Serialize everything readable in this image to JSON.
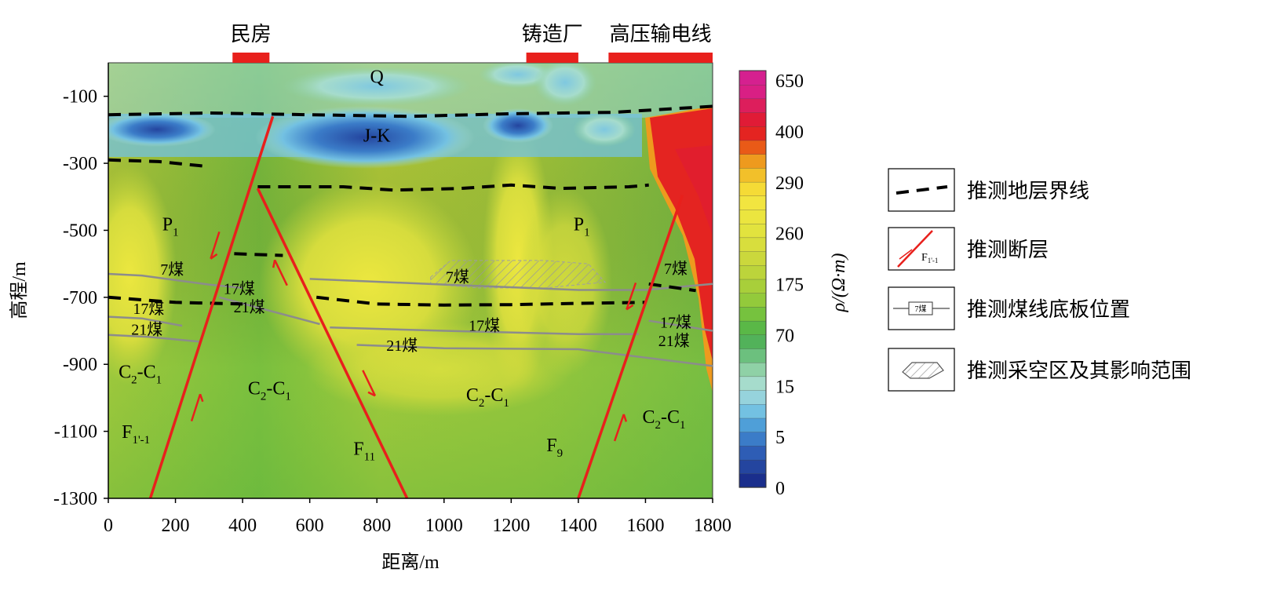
{
  "chart_data": {
    "type": "heatmap",
    "xlabel": "距离/m",
    "ylabel": "高程/m",
    "xlim": [
      0,
      1800
    ],
    "ylim": [
      -1300,
      0
    ],
    "x_ticks": [
      "0",
      "200",
      "400",
      "600",
      "800",
      "1000",
      "1200",
      "1400",
      "1600",
      "1800"
    ],
    "y_ticks": [
      {
        "v": -100,
        "label": "-100"
      },
      {
        "v": -300,
        "label": "-300"
      },
      {
        "v": -500,
        "label": "-500"
      },
      {
        "v": -700,
        "label": "-700"
      },
      {
        "v": -900,
        "label": "-900"
      },
      {
        "v": -1100,
        "label": "-1100"
      },
      {
        "v": -1300,
        "label": "-1300"
      }
    ],
    "colorbar": {
      "label": "ρ/(Ω·m)",
      "ticks": [
        "650",
        "400",
        "290",
        "260",
        "175",
        "70",
        "15",
        "5",
        "0"
      ],
      "colors": [
        "#1a2e8c",
        "#24459f",
        "#2e5db5",
        "#3b7cc8",
        "#4f9fd8",
        "#73c1e2",
        "#96d3dc",
        "#a6dccc",
        "#8fd1a6",
        "#6cc07e",
        "#52b25a",
        "#5ab847",
        "#76c23e",
        "#93ca3b",
        "#a8cf3a",
        "#bcd43b",
        "#cbd83c",
        "#d8de3d",
        "#e2e33e",
        "#ebe53f",
        "#f2e540",
        "#f5db36",
        "#f2c02a",
        "#ee9a1e",
        "#e95a17",
        "#e42421",
        "#e01b36",
        "#dd1e5c",
        "#d91f84",
        "#d5208f"
      ]
    },
    "markers": [
      {
        "label": "民房",
        "x0": 370,
        "x1": 480
      },
      {
        "label": "铸造厂",
        "x0": 1245,
        "x1": 1400
      },
      {
        "label": "高压输电线",
        "x0": 1490,
        "x1": 1800
      }
    ],
    "faults": [
      {
        "name": "F",
        "sub": "1'-1",
        "points": [
          [
            125,
            -1300
          ],
          [
            490,
            -160
          ]
        ],
        "label_at": [
          40,
          -1120
        ]
      },
      {
        "name": "F",
        "sub": "11",
        "points": [
          [
            445,
            -375
          ],
          [
            890,
            -1300
          ]
        ],
        "label_at": [
          730,
          -1170
        ]
      },
      {
        "name": "F",
        "sub": "9",
        "points": [
          [
            1400,
            -1300
          ],
          [
            1710,
            -395
          ]
        ],
        "label_at": [
          1305,
          -1160
        ]
      }
    ],
    "strata_boundaries": [
      {
        "points": [
          [
            0,
            -155
          ],
          [
            300,
            -150
          ],
          [
            600,
            -155
          ],
          [
            900,
            -160
          ],
          [
            1200,
            -152
          ],
          [
            1500,
            -148
          ],
          [
            1800,
            -130
          ]
        ]
      },
      {
        "points": [
          [
            0,
            -290
          ],
          [
            150,
            -295
          ],
          [
            300,
            -310
          ]
        ]
      },
      {
        "points": [
          [
            445,
            -370
          ],
          [
            700,
            -370
          ],
          [
            850,
            -380
          ],
          [
            1050,
            -375
          ],
          [
            1200,
            -365
          ],
          [
            1350,
            -375
          ],
          [
            1550,
            -370
          ],
          [
            1610,
            -365
          ]
        ]
      },
      {
        "points": [
          [
            375,
            -570
          ],
          [
            520,
            -575
          ]
        ]
      },
      {
        "points": [
          [
            0,
            -700
          ],
          [
            200,
            -715
          ],
          [
            400,
            -720
          ]
        ]
      },
      {
        "points": [
          [
            620,
            -700
          ],
          [
            800,
            -720
          ],
          [
            1000,
            -723
          ],
          [
            1200,
            -722
          ],
          [
            1400,
            -718
          ],
          [
            1600,
            -715
          ]
        ]
      },
      {
        "points": [
          [
            1610,
            -660
          ],
          [
            1750,
            -680
          ]
        ]
      }
    ],
    "coal_lines": [
      {
        "points": [
          [
            0,
            -630
          ],
          [
            100,
            -635
          ],
          [
            300,
            -662
          ],
          [
            400,
            -672
          ]
        ]
      },
      {
        "points": [
          [
            600,
            -645
          ],
          [
            1000,
            -662
          ],
          [
            1400,
            -678
          ],
          [
            1600,
            -678
          ],
          [
            1800,
            -660
          ]
        ]
      },
      {
        "points": [
          [
            0,
            -758
          ],
          [
            100,
            -763
          ],
          [
            220,
            -785
          ]
        ]
      },
      {
        "points": [
          [
            330,
            -700
          ],
          [
            630,
            -780
          ]
        ]
      },
      {
        "points": [
          [
            660,
            -790
          ],
          [
            1000,
            -800
          ],
          [
            1400,
            -810
          ],
          [
            1580,
            -810
          ]
        ]
      },
      {
        "points": [
          [
            0,
            -812
          ],
          [
            120,
            -818
          ],
          [
            270,
            -832
          ]
        ]
      },
      {
        "points": [
          [
            740,
            -842
          ],
          [
            1000,
            -852
          ],
          [
            1400,
            -855
          ],
          [
            1800,
            -905
          ]
        ]
      },
      {
        "points": [
          [
            1610,
            -770
          ],
          [
            1800,
            -800
          ]
        ]
      }
    ],
    "coal_labels": [
      {
        "text": "7煤",
        "x": 190,
        "y": -632
      },
      {
        "text": "17煤",
        "x": 390,
        "y": -690
      },
      {
        "text": "21煤",
        "x": 420,
        "y": -745
      },
      {
        "text": "17煤",
        "x": 120,
        "y": -750
      },
      {
        "text": "21煤",
        "x": 115,
        "y": -812
      },
      {
        "text": "7煤",
        "x": 1040,
        "y": -655
      },
      {
        "text": "17煤",
        "x": 1120,
        "y": -800
      },
      {
        "text": "21煤",
        "x": 875,
        "y": -860
      },
      {
        "text": "7煤",
        "x": 1690,
        "y": -630
      },
      {
        "text": "17煤",
        "x": 1690,
        "y": -790
      },
      {
        "text": "21煤",
        "x": 1685,
        "y": -845
      }
    ],
    "goaf": {
      "points": [
        [
          960,
          -640
        ],
        [
          1020,
          -590
        ],
        [
          1300,
          -590
        ],
        [
          1430,
          -600
        ],
        [
          1480,
          -655
        ],
        [
          1300,
          -672
        ],
        [
          1100,
          -672
        ],
        [
          960,
          -660
        ]
      ]
    },
    "layer_labels": [
      {
        "main": "Q",
        "sub": "",
        "x": 800,
        "y": -60
      },
      {
        "main": "J-K",
        "sub": "",
        "x": 800,
        "y": -235
      },
      {
        "main": "P",
        "sub": "1",
        "x": 185,
        "y": -500
      },
      {
        "main": "P",
        "sub": "1",
        "x": 1410,
        "y": -500
      },
      {
        "main": "C",
        "sub": "2",
        "rest": "-C",
        "sub2": "1",
        "x": 95,
        "y": -940
      },
      {
        "main": "C",
        "sub": "2",
        "rest": "-C",
        "sub2": "1",
        "x": 480,
        "y": -990
      },
      {
        "main": "C",
        "sub": "2",
        "rest": "-C",
        "sub2": "1",
        "x": 1130,
        "y": -1010
      },
      {
        "main": "C",
        "sub": "2",
        "rest": "-C",
        "sub2": "1",
        "x": 1655,
        "y": -1075
      }
    ],
    "legend": [
      {
        "kind": "dashed",
        "label": "推测地层界线"
      },
      {
        "kind": "fault",
        "label": "推测断层",
        "sample": "F",
        "sample_sub": "1'-1"
      },
      {
        "kind": "coal",
        "label": "推测煤线底板位置",
        "sample": "7煤"
      },
      {
        "kind": "goaf",
        "label": "推测采空区及其影响范围"
      }
    ]
  }
}
